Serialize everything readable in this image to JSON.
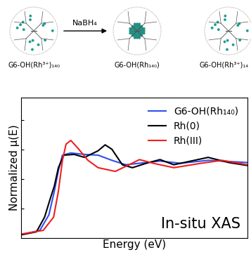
{
  "diagram": {
    "labels": [
      "G6-OH(Rh³⁺)₁₄₀",
      "G6-OH(Rh₁₄₀)",
      "G6-OH(Rh³⁺)₁₄"
    ],
    "arrow_label": "NaBH₄"
  },
  "chart_data": {
    "type": "line",
    "xlabel": "Energy (eV)",
    "ylabel": "Normalized μ(E)",
    "annotations": [
      "In-situ XAS"
    ],
    "xlim": [
      0,
      100
    ],
    "ylim": [
      0,
      1.9
    ],
    "xticks": [],
    "yticks": [
      0.4,
      0.8,
      1.2,
      1.6
    ],
    "tick_labels": false,
    "legend": "upper right",
    "series": [
      {
        "name": "G6-OH(Rh₁₄₀)",
        "color": "#2f4ff0",
        "x": [
          0,
          8.2,
          12.2,
          14.6,
          16.4,
          18.2,
          21.9,
          28,
          34,
          40.1,
          46.2,
          52.3,
          61.4,
          70.5,
          82.7,
          100
        ],
        "values": [
          0.04,
          0.1,
          0.31,
          0.63,
          0.91,
          1.12,
          1.15,
          1.13,
          1.12,
          1.05,
          0.99,
          1.01,
          1.04,
          1.01,
          1.05,
          1.02
        ]
      },
      {
        "name": "Rh(0)",
        "color": "#000000",
        "x": [
          0,
          6.7,
          10.3,
          12.8,
          14.6,
          16.4,
          18.8,
          23.4,
          28,
          34,
          37.1,
          40.1,
          44.7,
          49.2,
          55.3,
          61.4,
          67.5,
          76.6,
          82.7,
          91.8,
          100
        ],
        "values": [
          0.04,
          0.08,
          0.28,
          0.53,
          0.7,
          0.95,
          1.12,
          1.13,
          1.09,
          1.18,
          1.26,
          1.2,
          0.99,
          0.95,
          1.01,
          1.06,
          0.99,
          1.05,
          1.09,
          1.02,
          0.98
        ]
      },
      {
        "name": "Rh(III)",
        "color": "#ee2020",
        "x": [
          0,
          9.7,
          14.3,
          16.4,
          18.2,
          19.8,
          21.9,
          24.9,
          29.5,
          34,
          41.6,
          47.7,
          52.3,
          58.4,
          67.5,
          79.6,
          88.8,
          100
        ],
        "values": [
          0.05,
          0.1,
          0.28,
          0.63,
          1.05,
          1.27,
          1.32,
          1.22,
          1.05,
          0.95,
          0.9,
          0.99,
          1.06,
          1.01,
          0.95,
          1.01,
          1.05,
          0.99
        ]
      }
    ]
  }
}
